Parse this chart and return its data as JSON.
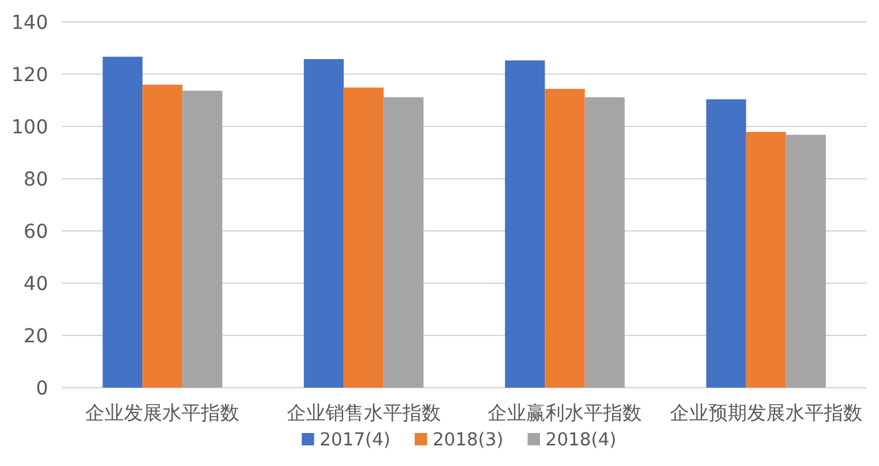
{
  "chart_data": {
    "type": "bar",
    "categories": [
      "企业发展水平指数",
      "企业销售水平指数",
      "企业赢利水平指数",
      "企业预期发展水平指数"
    ],
    "series": [
      {
        "name": "2017(4)",
        "color": "#4472c4",
        "values": [
          126.7,
          125.8,
          125.3,
          110.4
        ]
      },
      {
        "name": "2018(3)",
        "color": "#ed7d31",
        "values": [
          116,
          114.9,
          114.4,
          97.9
        ]
      },
      {
        "name": "2018(4)",
        "color": "#a5a5a5",
        "values": [
          113.7,
          111.2,
          111.2,
          96.8
        ]
      }
    ],
    "ylim": [
      0,
      140
    ],
    "yticks": [
      0,
      20,
      40,
      60,
      80,
      100,
      120,
      140
    ],
    "grid": "y",
    "legend": "bottom"
  }
}
